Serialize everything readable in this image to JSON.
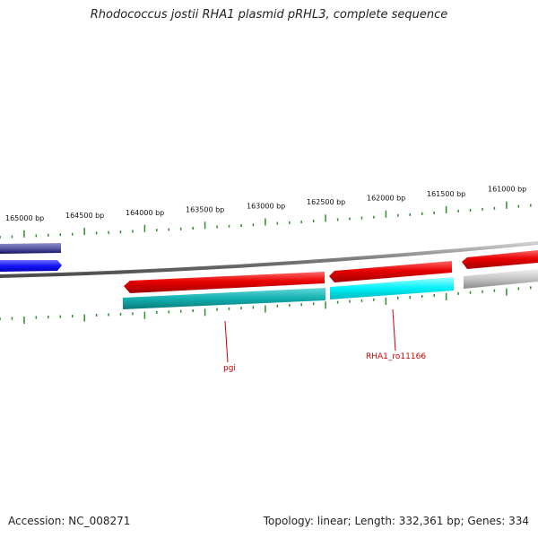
{
  "title": "Rhodococcus jostii RHA1 plasmid pRHL3, complete sequence",
  "accession": "Accession: NC_008271",
  "summary": "Topology: linear; Length: 332,361 bp; Genes: 334",
  "scale": {
    "labels": [
      "165000 bp",
      "164500 bp",
      "164000 bp",
      "163500 bp",
      "163000 bp",
      "162500 bp",
      "162000 bp",
      "161500 bp",
      "161000 bp"
    ],
    "tick_color": "#2e8b2e"
  },
  "gene_labels": [
    {
      "name": "pgi",
      "color": "#cc0000"
    },
    {
      "name": "RHA1_ro11166",
      "color": "#cc0000"
    }
  ],
  "colors": {
    "backbone": "#8a8a8a",
    "forward_cds": "#e01010",
    "reverse_cds_teal": "#13b3b3",
    "reverse_cds_cyan": "#00e8f0",
    "blue_gene": "#1a1aff",
    "navy_gene": "#1a1a80",
    "gray_gene": "#bbbbbb"
  }
}
